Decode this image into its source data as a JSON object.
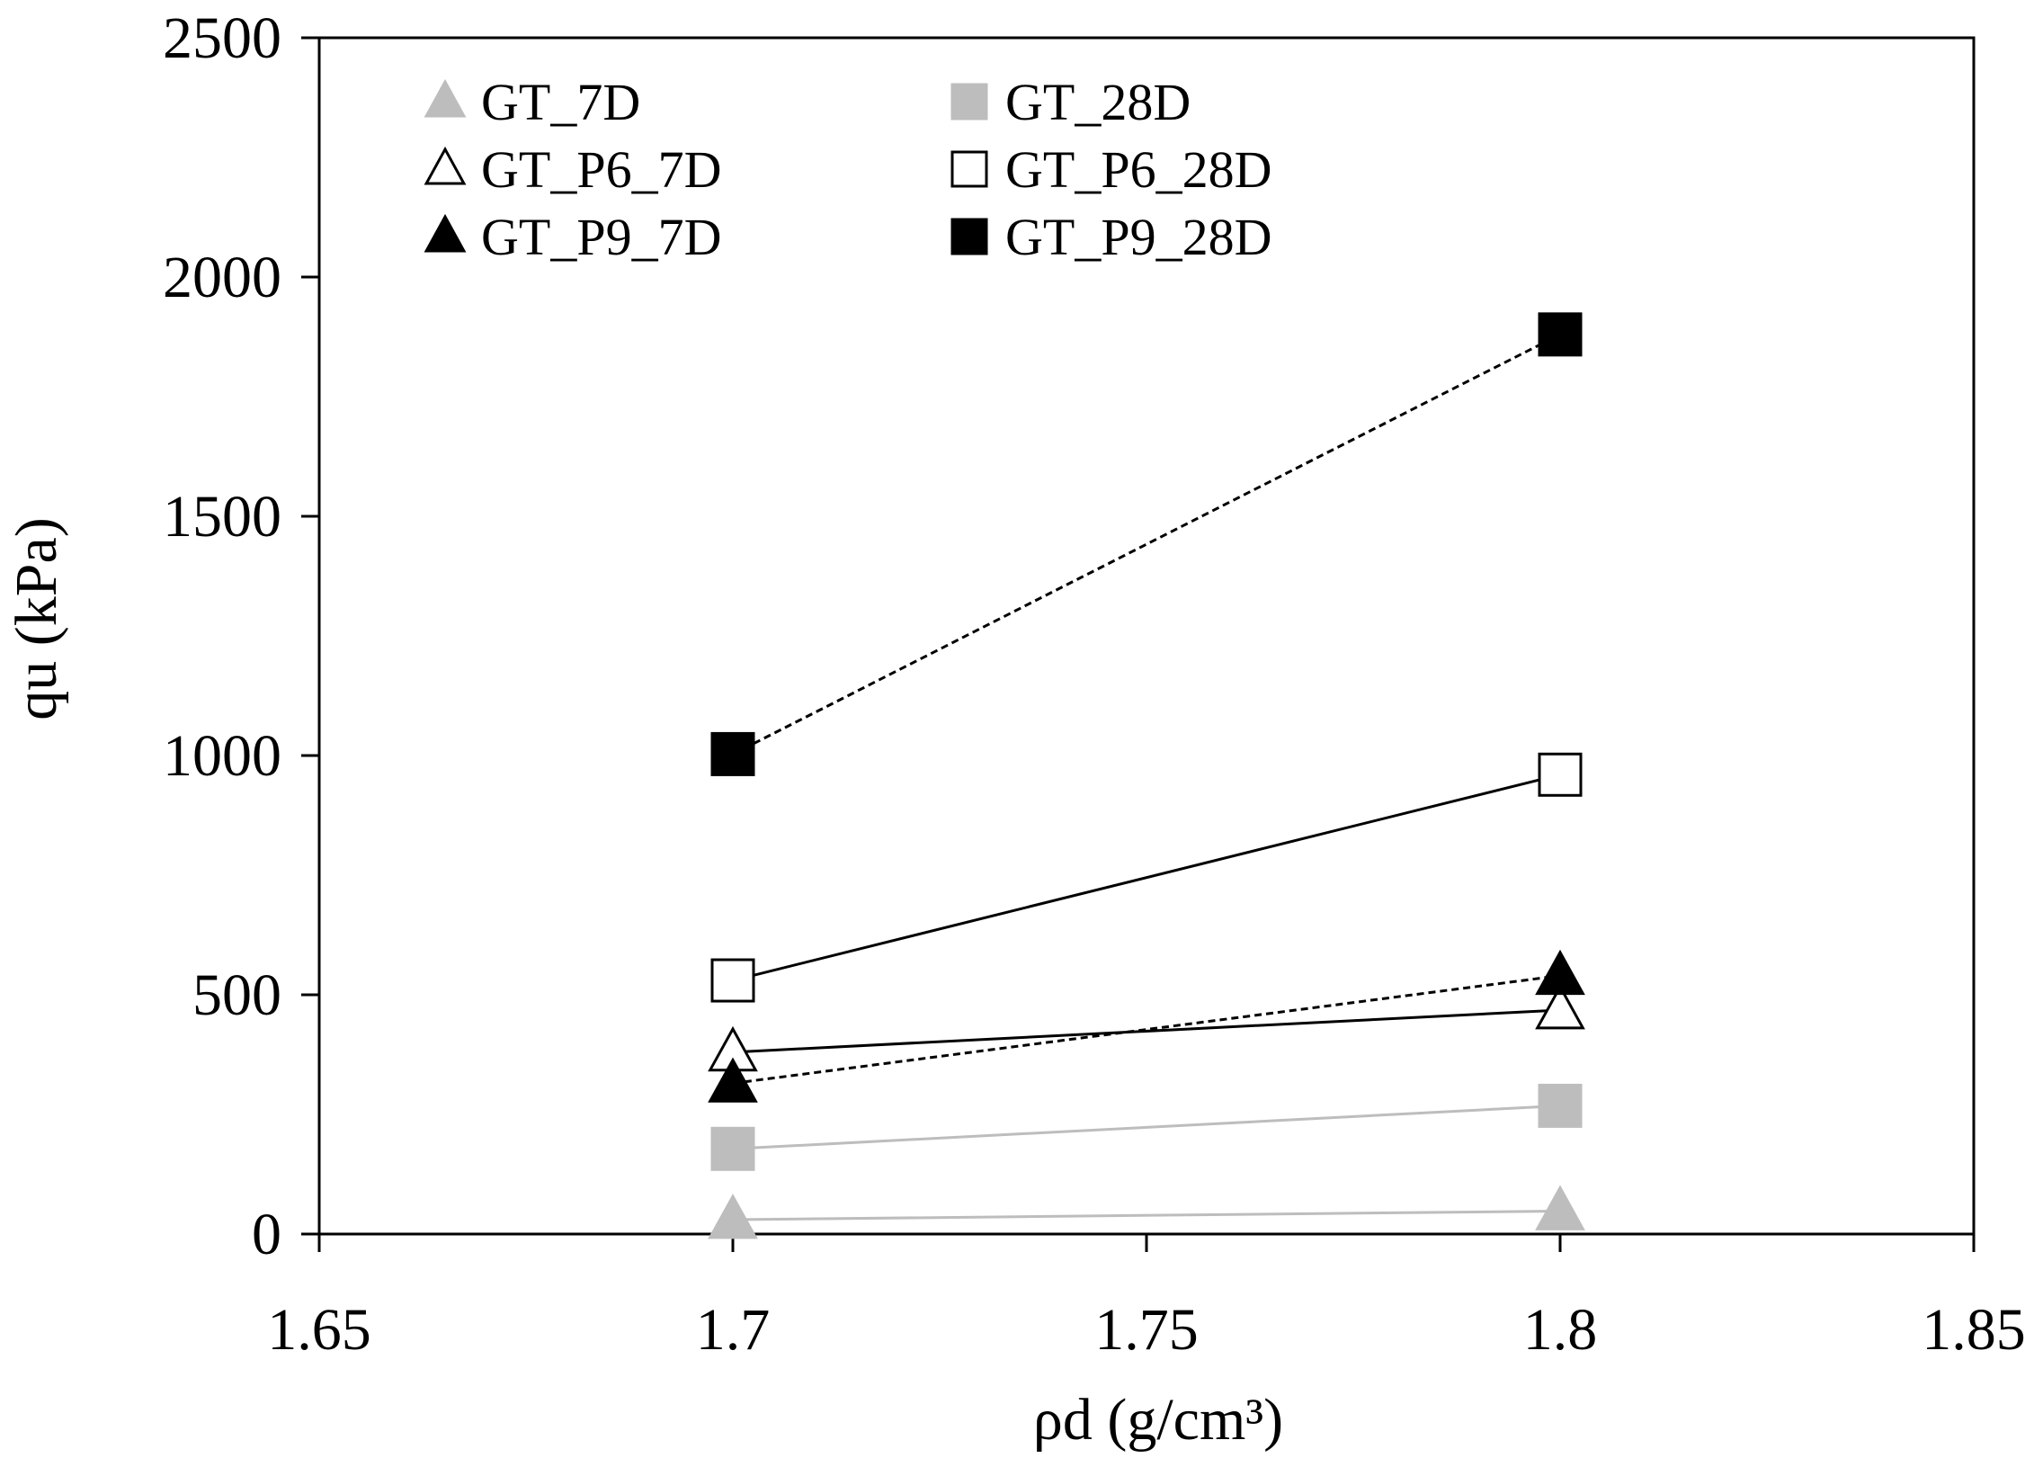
{
  "chart_data": {
    "type": "scatter",
    "title": "",
    "xlabel": "ρd (g/cm³)",
    "ylabel": "qu (kPa)",
    "xlim": [
      1.65,
      1.85
    ],
    "ylim": [
      0,
      2500
    ],
    "x_ticks": [
      1.65,
      1.7,
      1.75,
      1.8,
      1.85
    ],
    "x_tick_labels": [
      "1.65",
      "1.7",
      "1.75",
      "1.8",
      "1.85"
    ],
    "y_ticks": [
      0,
      500,
      1000,
      1500,
      2000,
      2500
    ],
    "y_tick_labels": [
      "0",
      "500",
      "1000",
      "1500",
      "2000",
      "2500"
    ],
    "grid": false,
    "legend_position": "top-left",
    "series": [
      {
        "name": "GT_7D",
        "x": [
          1.7,
          1.8
        ],
        "y": [
          30,
          48
        ],
        "marker": "triangle",
        "fill": "#bdbdbd",
        "stroke": "#bdbdbd",
        "line": "solid",
        "line_color": "#bdbdbd"
      },
      {
        "name": "GT_28D",
        "x": [
          1.7,
          1.8
        ],
        "y": [
          178,
          268
        ],
        "marker": "square",
        "fill": "#bdbdbd",
        "stroke": "#bdbdbd",
        "line": "solid",
        "line_color": "#bdbdbd"
      },
      {
        "name": "GT_P6_7D",
        "x": [
          1.7,
          1.8
        ],
        "y": [
          380,
          468
        ],
        "marker": "triangle",
        "fill": "#ffffff",
        "stroke": "#000000",
        "line": "solid",
        "line_color": "#000000"
      },
      {
        "name": "GT_P6_28D",
        "x": [
          1.7,
          1.8
        ],
        "y": [
          530,
          960
        ],
        "marker": "square",
        "fill": "#ffffff",
        "stroke": "#000000",
        "line": "solid",
        "line_color": "#000000"
      },
      {
        "name": "GT_P9_7D",
        "x": [
          1.7,
          1.8
        ],
        "y": [
          315,
          540
        ],
        "marker": "triangle",
        "fill": "#000000",
        "stroke": "#000000",
        "line": "dashed",
        "line_color": "#000000"
      },
      {
        "name": "GT_P9_28D",
        "x": [
          1.7,
          1.8
        ],
        "y": [
          1003,
          1880
        ],
        "marker": "square",
        "fill": "#000000",
        "stroke": "#000000",
        "line": "dashed",
        "line_color": "#000000"
      }
    ]
  }
}
